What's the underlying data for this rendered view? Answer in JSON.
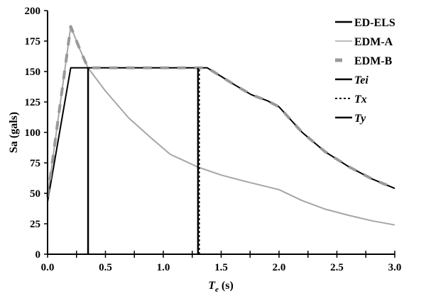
{
  "chart_data": {
    "type": "line",
    "title": "",
    "xlabel": "T_e (s)",
    "xlabel_main": "T",
    "xlabel_sub": "e",
    "xlabel_unit": " (s)",
    "ylabel": "Sa (gals)",
    "xlim": [
      0.0,
      3.0
    ],
    "ylim": [
      0,
      200
    ],
    "grid": false,
    "legend_position": "upper right",
    "x_ticks": [
      "0.0",
      "0.5",
      "1.0",
      "1.5",
      "2.0",
      "2.5",
      "3.0"
    ],
    "x_tick_values": [
      0.0,
      0.5,
      1.0,
      1.5,
      2.0,
      2.5,
      3.0
    ],
    "x_minor_tick_values": [
      0.25,
      0.75,
      1.25,
      1.75,
      2.25,
      2.75
    ],
    "y_ticks": [
      "0",
      "25",
      "50",
      "75",
      "100",
      "125",
      "150",
      "175",
      "200"
    ],
    "y_tick_values": [
      0,
      25,
      50,
      75,
      100,
      125,
      150,
      175,
      200
    ],
    "series": [
      {
        "name": "ED-ELS",
        "style": "solid",
        "color": "#000000",
        "x": [
          0.0,
          0.2,
          0.35,
          0.6,
          0.9,
          1.2,
          1.38,
          1.5,
          1.6,
          1.76,
          1.9,
          2.0,
          2.2,
          2.4,
          2.6,
          2.8,
          3.0
        ],
        "y": [
          43,
          153,
          153,
          153,
          153,
          153,
          153,
          146,
          140,
          131,
          126,
          121,
          100,
          84,
          72,
          62,
          54
        ]
      },
      {
        "name": "EDM-A",
        "style": "solid",
        "color": "#a6a6a6",
        "x": [
          0.0,
          0.2,
          0.28,
          0.35,
          0.5,
          0.7,
          0.9,
          1.06,
          1.3,
          1.5,
          1.7,
          2.0,
          2.2,
          2.4,
          2.6,
          2.8,
          3.0
        ],
        "y": [
          47,
          187,
          168,
          153,
          134,
          112,
          95,
          82,
          71.5,
          65,
          60,
          53,
          44,
          37,
          32,
          27.5,
          24
        ]
      },
      {
        "name": "EDM-B",
        "style": "dashed",
        "color": "#999999",
        "x": [
          0.0,
          0.2,
          0.28,
          0.35,
          0.6,
          0.9,
          1.2,
          1.38,
          1.5,
          1.6,
          1.76,
          1.9,
          2.0,
          2.2,
          2.4,
          2.6,
          2.8,
          3.0
        ],
        "y": [
          47,
          187,
          168,
          153,
          153,
          153,
          153,
          153,
          146,
          140,
          131,
          126,
          121,
          100,
          84,
          72,
          62,
          54
        ]
      }
    ],
    "vertical_lines": [
      {
        "name": "Tei",
        "x": 0.35,
        "style": "solid",
        "color": "#000000",
        "y_range": [
          0,
          153
        ]
      },
      {
        "name": "Tx",
        "x": 1.31,
        "style": "dotted",
        "color": "#000000",
        "y_range": [
          0,
          153
        ]
      },
      {
        "name": "Ty",
        "x": 1.3,
        "style": "solid",
        "color": "#000000",
        "y_range": [
          0,
          153
        ]
      }
    ],
    "legend": [
      {
        "label": "ED-ELS",
        "style": "solid",
        "color": "#000000",
        "italic": false
      },
      {
        "label": "EDM-A",
        "style": "solid",
        "color": "#a6a6a6",
        "italic": false
      },
      {
        "label": "EDM-B",
        "style": "dashed",
        "color": "#999999",
        "italic": false
      },
      {
        "label": "Tei",
        "style": "solid",
        "color": "#000000",
        "italic": true
      },
      {
        "label": "Tx",
        "style": "dotted",
        "color": "#000000",
        "italic": true
      },
      {
        "label": "Ty",
        "style": "solid",
        "color": "#000000",
        "italic": true
      }
    ]
  }
}
